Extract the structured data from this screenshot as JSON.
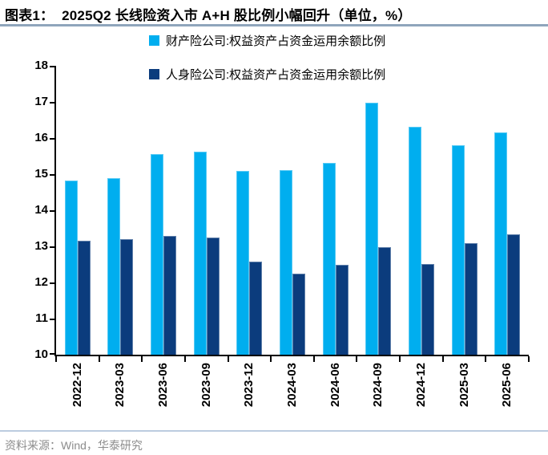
{
  "footer": "资料来源：Wind，华泰研究",
  "colors": {
    "title_rule": "#8FA5BC",
    "footer_rule": "#BCCCDF",
    "axis": "#000000",
    "footer_text": "#8C8C8C",
    "series_light_blue": "#00AEEF",
    "series_dark_blue": "#0B3C7D"
  },
  "chart_data": {
    "type": "bar",
    "title": "图表1：  2025Q2 长线险资入市 A+H 股比例小幅回升（单位，%）",
    "unit": "%",
    "categories": [
      "2022-12",
      "2023-03",
      "2023-06",
      "2023-09",
      "2023-12",
      "2024-03",
      "2024-06",
      "2024-09",
      "2024-12",
      "2025-03",
      "2025-06"
    ],
    "series": [
      {
        "name": "财产险公司:权益资产占资金运用余额比例",
        "color": "#00AEEF",
        "values": [
          14.83,
          14.88,
          15.55,
          15.63,
          15.1,
          15.12,
          15.32,
          16.97,
          16.32,
          15.8,
          16.15
        ]
      },
      {
        "name": "人身险公司:权益资产占资金运用余额比例",
        "color": "#0B3C7D",
        "values": [
          13.15,
          13.2,
          13.3,
          13.25,
          12.58,
          12.25,
          12.48,
          12.97,
          12.52,
          13.08,
          13.33
        ]
      }
    ],
    "ylim": [
      10,
      18
    ],
    "yticks": [
      18,
      17,
      16,
      15,
      14,
      13,
      12,
      11,
      10
    ],
    "legend_position": "top",
    "grid": false
  }
}
